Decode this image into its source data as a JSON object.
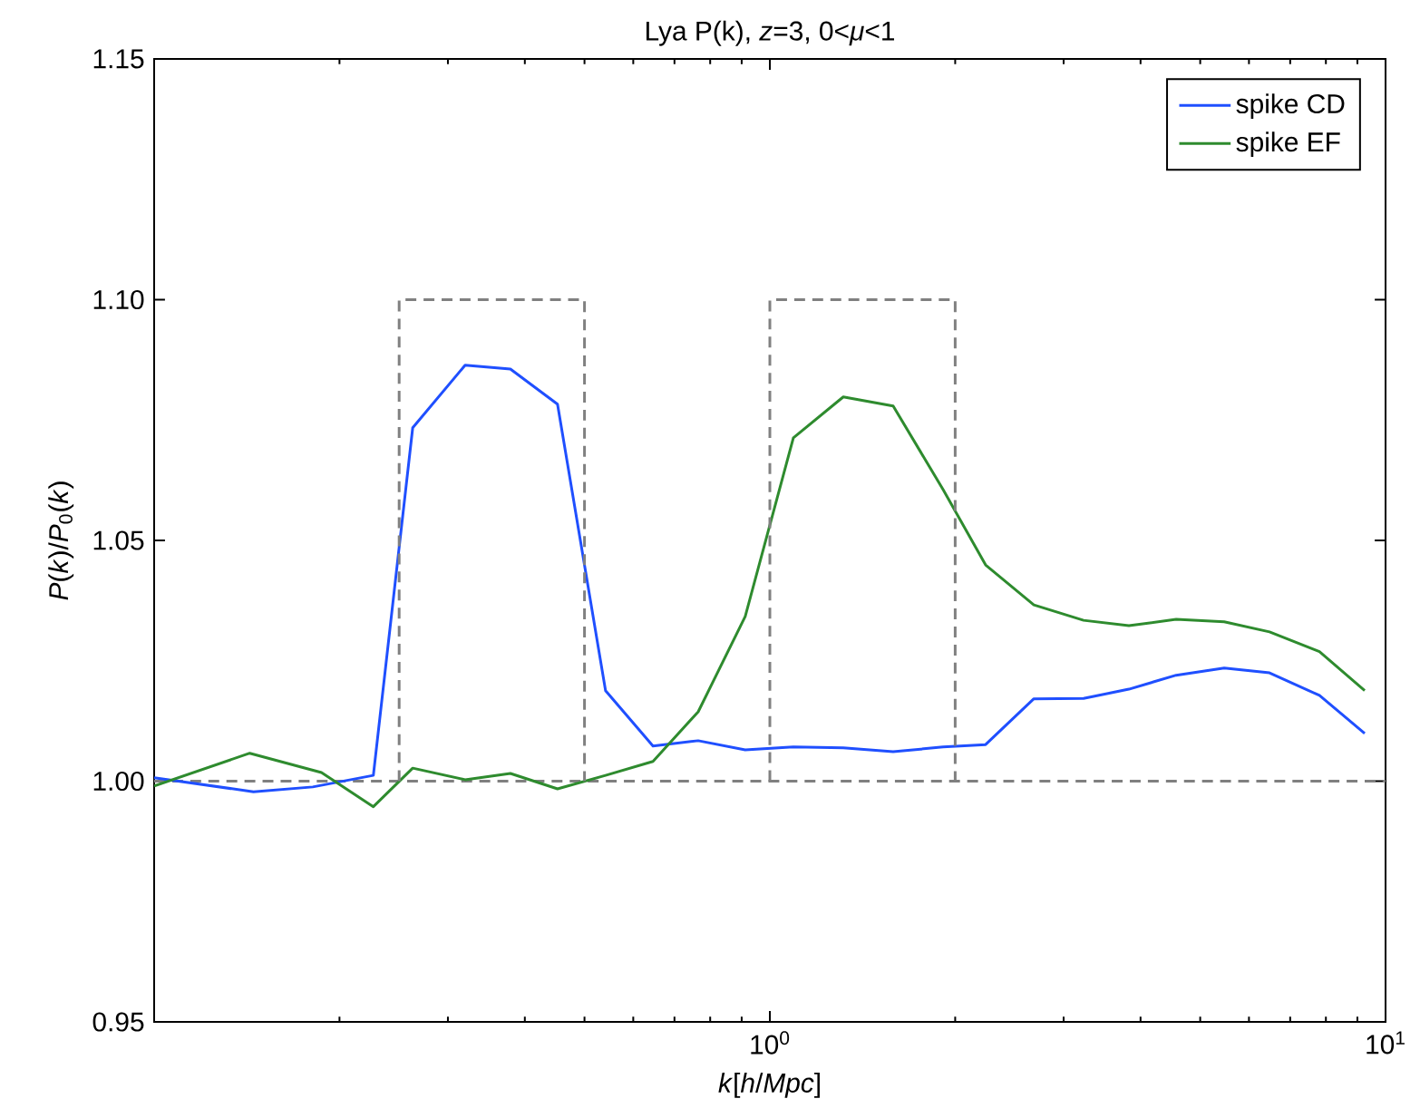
{
  "chart_data": {
    "type": "line",
    "title": "Lya P(k), *z*=3, 0<*μ*<1",
    "xlabel": "*k*[*h*/*Mpc*]",
    "ylabel": "*P*(*k*)/*P*$_{0}$(*k*)",
    "log": "x",
    "xlim": [
      0.1,
      10
    ],
    "ylim": [
      0.95,
      1.15
    ],
    "xticks": [
      {
        "value": 0.1,
        "label": null
      },
      {
        "value": 1,
        "label": "10$^{0}$"
      },
      {
        "value": 10,
        "label": "10$^{1}$"
      }
    ],
    "yticks": [
      {
        "value": 0.95,
        "label": "0.95"
      },
      {
        "value": 1.0,
        "label": "1.00"
      },
      {
        "value": 1.05,
        "label": "1.05"
      },
      {
        "value": 1.1,
        "label": "1.10"
      },
      {
        "value": 1.15,
        "label": "1.15"
      }
    ],
    "grid": false,
    "legend": "top right",
    "line_style": "solid",
    "marker": "none",
    "ref_lines": [
      {
        "axis": "y",
        "value": 1.0,
        "color": "#808080",
        "line_style": "dashed"
      }
    ],
    "series": [
      {
        "name": "spike CD",
        "color": "#1f4fff",
        "x": [
          0.1,
          0.145,
          0.181,
          0.227,
          0.263,
          0.32,
          0.379,
          0.452,
          0.541,
          0.646,
          0.765,
          0.912,
          1.092,
          1.316,
          1.586,
          1.911,
          2.241,
          2.684,
          3.233,
          3.83,
          4.57,
          5.47,
          6.48,
          7.81,
          9.25
        ],
        "values": [
          1.0007,
          0.9978,
          0.9988,
          1.0012,
          1.0734,
          1.0864,
          1.0856,
          1.0783,
          1.0188,
          1.0073,
          1.0084,
          1.0065,
          1.0071,
          1.0069,
          1.0061,
          1.0071,
          1.0076,
          1.0171,
          1.0172,
          1.0191,
          1.022,
          1.0235,
          1.0225,
          1.0178,
          1.0099
        ]
      },
      {
        "name": "spike EF",
        "color": "#2e8b2e",
        "x": [
          0.1,
          0.143,
          0.187,
          0.227,
          0.263,
          0.32,
          0.379,
          0.452,
          0.541,
          0.646,
          0.765,
          0.912,
          1.092,
          1.316,
          1.586,
          1.911,
          2.241,
          2.684,
          3.233,
          3.83,
          4.57,
          5.47,
          6.48,
          7.81,
          9.25
        ],
        "values": [
          0.999,
          1.0058,
          1.0018,
          0.9947,
          1.0027,
          1.0003,
          1.0016,
          0.9984,
          1.0012,
          1.0041,
          1.0144,
          1.0342,
          1.0713,
          1.0798,
          1.0779,
          1.0606,
          1.0449,
          1.0366,
          1.0334,
          1.0323,
          1.0336,
          1.0331,
          1.031,
          1.0269,
          1.0188
        ]
      },
      {
        "color": "#808080",
        "line_style": "dashed",
        "x": [
          0.25,
          0.25,
          0.5,
          0.5
        ],
        "values": [
          1.0,
          1.1,
          1.1,
          1.0
        ]
      },
      {
        "color": "#808080",
        "line_style": "dashed",
        "x": [
          1,
          1,
          2,
          2
        ],
        "values": [
          1.0,
          1.1,
          1.1,
          1.0
        ]
      }
    ]
  }
}
